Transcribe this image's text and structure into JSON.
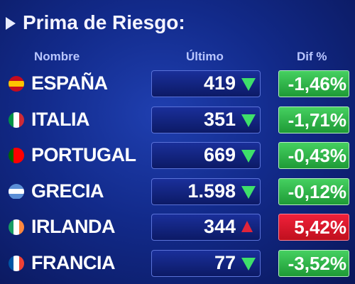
{
  "title": "Prima de Riesgo:",
  "table": {
    "headers": [
      "Nombre",
      "Último",
      "Dif %"
    ],
    "rows": [
      {
        "name": "ESPAÑA",
        "last": "419",
        "change": "-1,46%",
        "trend": "down"
      },
      {
        "name": "ITALIA",
        "last": "351",
        "change": "-1,71%",
        "trend": "down"
      },
      {
        "name": "PORTUGAL",
        "last": "669",
        "change": "-0,43%",
        "trend": "down"
      },
      {
        "name": "GRECIA",
        "last": "1.598",
        "change": "-0,12%",
        "trend": "down"
      },
      {
        "name": "IRLANDA",
        "last": "344",
        "change": "5,42%",
        "trend": "up"
      },
      {
        "name": "FRANCIA",
        "last": "77",
        "change": "-3,52%",
        "trend": "down"
      }
    ]
  }
}
